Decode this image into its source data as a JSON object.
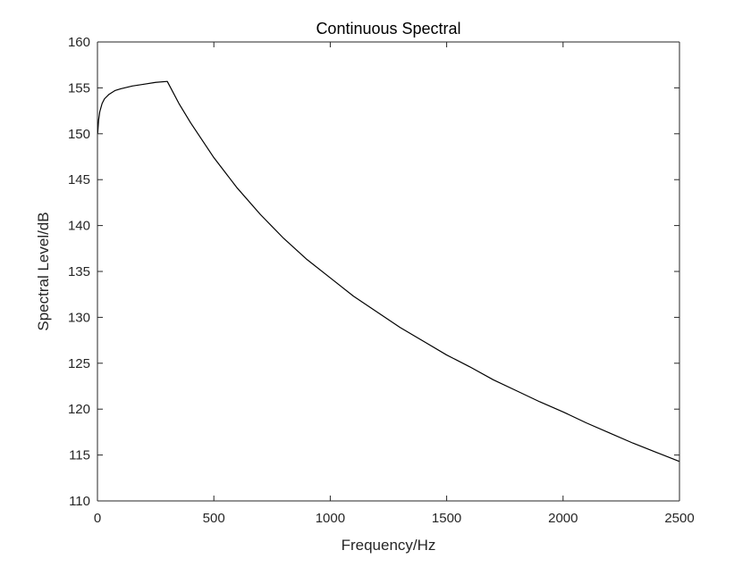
{
  "chart_data": {
    "type": "line",
    "title": "Continuous Spectral",
    "xlabel": "Frequency/Hz",
    "ylabel": "Spectral Level/dB",
    "xlim": [
      0,
      2500
    ],
    "ylim": [
      110,
      160
    ],
    "xticks": [
      0,
      500,
      1000,
      1500,
      2000,
      2500
    ],
    "yticks": [
      110,
      115,
      120,
      125,
      130,
      135,
      140,
      145,
      150,
      155,
      160
    ],
    "xtick_labels": [
      "0",
      "500",
      "1000",
      "1500",
      "2000",
      "2500"
    ],
    "ytick_labels": [
      "110",
      "115",
      "120",
      "125",
      "130",
      "135",
      "140",
      "145",
      "150",
      "155",
      "160"
    ],
    "grid": false,
    "legend": "none",
    "series": [
      {
        "color": "#000000",
        "x": [
          1,
          5,
          10,
          20,
          30,
          50,
          75,
          100,
          150,
          200,
          250,
          300,
          350,
          400,
          500,
          600,
          700,
          800,
          900,
          1000,
          1100,
          1200,
          1300,
          1400,
          1500,
          1600,
          1700,
          1800,
          1900,
          2000,
          2100,
          2200,
          2300,
          2400,
          2500
        ],
        "y": [
          150.0,
          151.5,
          152.4,
          153.3,
          153.8,
          154.3,
          154.7,
          154.9,
          155.2,
          155.4,
          155.6,
          155.7,
          153.3,
          151.2,
          147.4,
          144.1,
          141.2,
          138.6,
          136.3,
          134.3,
          132.3,
          130.6,
          128.9,
          127.4,
          125.9,
          124.6,
          123.2,
          122.0,
          120.8,
          119.7,
          118.5,
          117.4,
          116.3,
          115.3,
          114.3
        ]
      }
    ]
  }
}
